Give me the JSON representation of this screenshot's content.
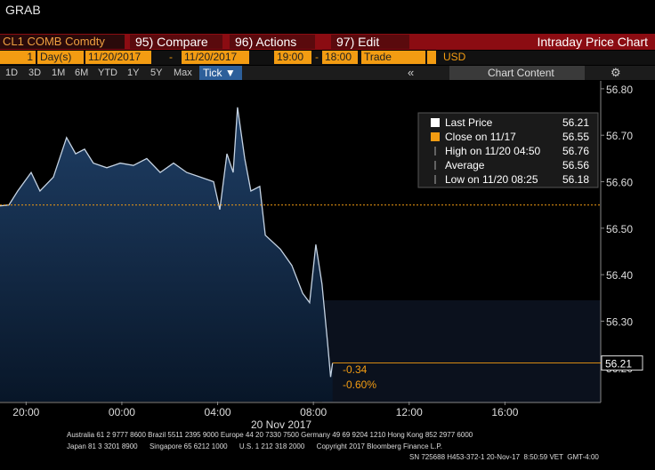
{
  "header": {
    "title": "GRAB"
  },
  "toolbar": {
    "ticker": "CL1 COMB Comdty",
    "buttons": [
      "95) Compare",
      "96) Actions",
      "97) Edit"
    ],
    "panel_title": "Intraday Price Chart"
  },
  "range": {
    "count": "1",
    "unit": "Day(s)",
    "start_date": "11/20/2017",
    "separator": "-",
    "end_date": "11/20/2017",
    "start_time": "19:00",
    "end_time": "18:00",
    "source": "Trade",
    "currency": "USD"
  },
  "periods": [
    "1D",
    "3D",
    "1M",
    "6M",
    "YTD",
    "1Y",
    "5Y",
    "Max"
  ],
  "interval": "Tick",
  "chart_content": "Chart Content",
  "chart_data": {
    "type": "line",
    "x_axis_label": "20 Nov 2017",
    "x": [
      -5.09,
      -4.72,
      -4.35,
      -3.79,
      -3.42,
      -2.86,
      -2.31,
      -1.93,
      -1.56,
      -1.19,
      -0.63,
      -0.07,
      0.48,
      1.04,
      1.6,
      2.16,
      2.71,
      3.27,
      3.83,
      4.09,
      4.39,
      4.65,
      4.83,
      5.13,
      5.39,
      5.76,
      5.99,
      6.62,
      7.1,
      7.55,
      7.84,
      8.1,
      8.36,
      8.59,
      8.72,
      8.8
    ],
    "series": [
      {
        "name": "Last Price",
        "color": "#c5d3e3",
        "values": [
          56.548,
          56.55,
          56.58,
          56.62,
          56.58,
          56.61,
          56.695,
          56.66,
          56.67,
          56.64,
          56.63,
          56.64,
          56.635,
          56.65,
          56.62,
          56.64,
          56.62,
          56.61,
          56.6,
          56.54,
          56.66,
          56.62,
          56.76,
          56.65,
          56.58,
          56.59,
          56.485,
          56.455,
          56.42,
          56.36,
          56.34,
          56.465,
          56.38,
          56.255,
          56.18,
          56.21
        ]
      }
    ],
    "xlim": [
      -5.09,
      20
    ],
    "xticks": [
      {
        "value": -4,
        "label": "20:00"
      },
      {
        "value": 0,
        "label": "00:00"
      },
      {
        "value": 4,
        "label": "04:00"
      },
      {
        "value": 8,
        "label": "08:00"
      },
      {
        "value": 12,
        "label": "12:00"
      },
      {
        "value": 16,
        "label": "16:00"
      }
    ],
    "ylim": [
      56.127,
      56.817
    ],
    "yticks": [
      {
        "value": 56.2,
        "label": "56.20"
      },
      {
        "value": 56.3,
        "label": "56.30"
      },
      {
        "value": 56.4,
        "label": "56.40"
      },
      {
        "value": 56.5,
        "label": "56.50"
      },
      {
        "value": 56.6,
        "label": "56.60"
      },
      {
        "value": 56.7,
        "label": "56.70"
      },
      {
        "value": 56.8,
        "label": "56.80"
      }
    ],
    "close_line": {
      "name": "Close on 11/17",
      "value": 56.55,
      "color": "#f39c12"
    },
    "last_price": 56.21,
    "change": "-0.34",
    "change_pct": "-0.60%",
    "stats": [
      {
        "label": "High on 11/20 04:50",
        "value": 56.76
      },
      {
        "label": "Average",
        "value": 56.56
      },
      {
        "label": "Low on 11/20 08:25",
        "value": 56.18
      }
    ]
  },
  "footer": {
    "lines": [
      "Australia 61 2 9777 8600 Brazil 5511 2395 9000 Europe 44 20 7330 7500 Germany 49 69 9204 1210 Hong Kong 852 2977 6000",
      "Japan 81 3 3201 8900      Singapore 65 6212 1000      U.S. 1 212 318 2000      Copyright 2017 Bloomberg Finance L.P.",
      "SN 725688 H453-372-1 20-Nov-17  8:50:59 VET  GMT-4:00"
    ]
  }
}
